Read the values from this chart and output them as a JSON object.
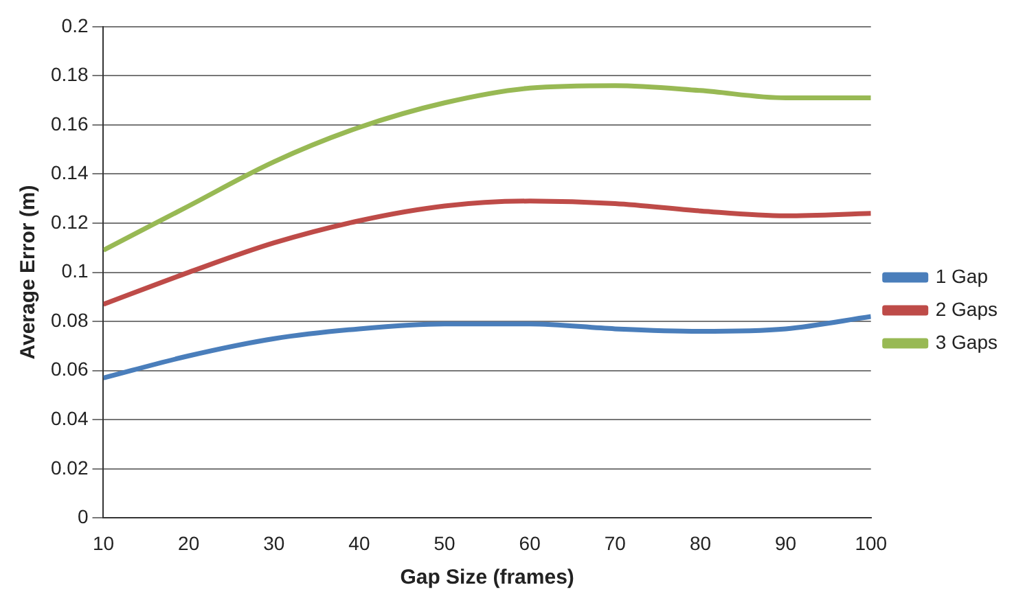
{
  "chart_data": {
    "type": "line",
    "xlabel": "Gap Size (frames)",
    "ylabel": "Average Error (m)",
    "x": [
      10,
      20,
      30,
      40,
      50,
      60,
      70,
      80,
      90,
      100
    ],
    "series": [
      {
        "name": "1 Gap",
        "color": "#4a7ebb",
        "values": [
          0.057,
          0.066,
          0.073,
          0.077,
          0.079,
          0.079,
          0.077,
          0.076,
          0.077,
          0.082
        ]
      },
      {
        "name": "2 Gaps",
        "color": "#be4b48",
        "values": [
          0.087,
          0.1,
          0.112,
          0.121,
          0.127,
          0.129,
          0.128,
          0.125,
          0.123,
          0.124
        ]
      },
      {
        "name": "3 Gaps",
        "color": "#98b954",
        "values": [
          0.109,
          0.127,
          0.145,
          0.159,
          0.169,
          0.175,
          0.176,
          0.174,
          0.171,
          0.171
        ]
      }
    ],
    "xlim": [
      10,
      100
    ],
    "xticks": [
      10,
      20,
      30,
      40,
      50,
      60,
      70,
      80,
      90,
      100
    ],
    "ylim": [
      0,
      0.2
    ],
    "yticks": [
      0,
      0.02,
      0.04,
      0.06,
      0.08,
      0.1,
      0.12,
      0.14,
      0.16,
      0.18,
      0.2
    ],
    "grid": "y",
    "legend": "right",
    "marker": "none",
    "line_style": "solid"
  }
}
